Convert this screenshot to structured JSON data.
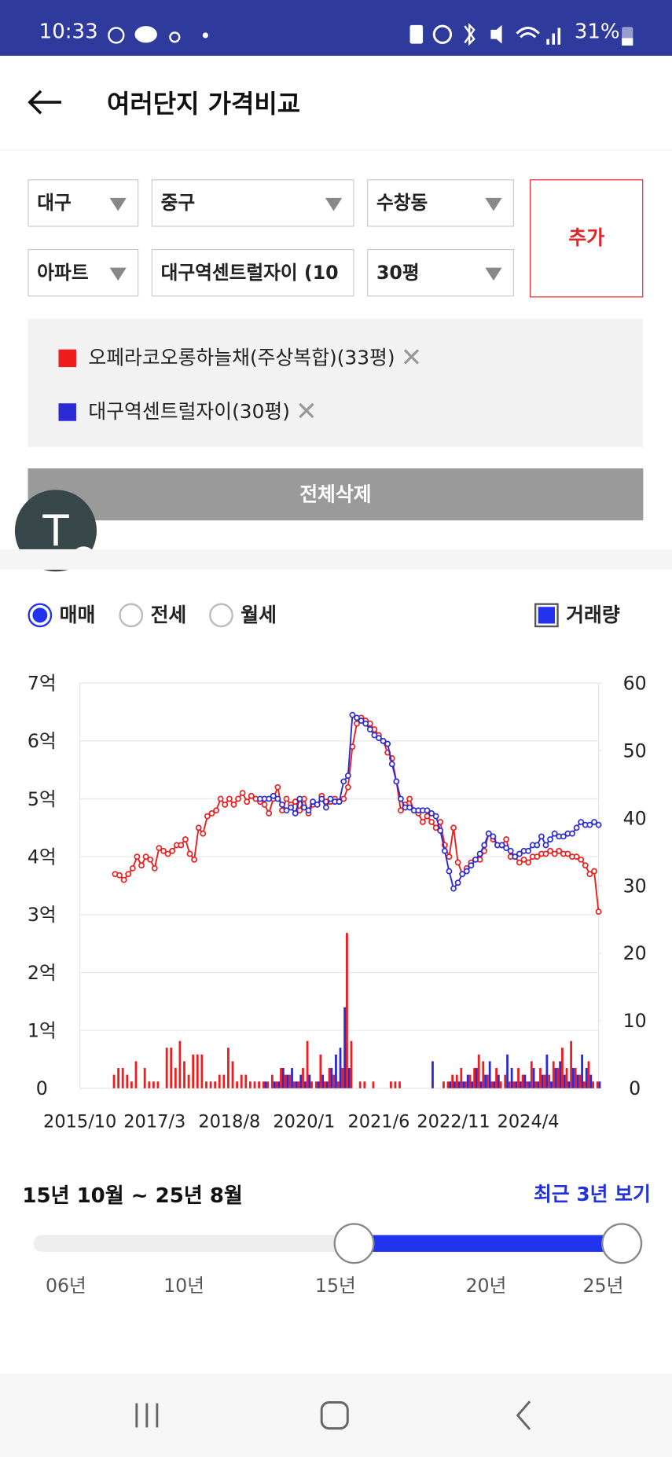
{
  "status_bar": {
    "time": "10:33",
    "battery": "31%"
  },
  "header": {
    "title": "여러단지 가격비교"
  },
  "filters": {
    "rows": [
      [
        "대구",
        "중구",
        "수창동"
      ],
      [
        "아파트",
        "대구역센트럴자이 (10",
        "30평"
      ]
    ],
    "add_button": "추가"
  },
  "delete_all_button": "전체삭제",
  "floating_button": "T",
  "tabs": {
    "options": [
      {
        "label": "매매",
        "selected": true
      },
      {
        "label": "전세",
        "selected": false
      },
      {
        "label": "월세",
        "selected": false
      }
    ],
    "volume_toggle": {
      "label": "거래량",
      "checked": true
    }
  },
  "chart_data": {
    "type": "line",
    "categories": [
      "2015/10",
      null,
      null,
      null,
      null,
      null,
      null,
      null,
      null,
      null,
      null,
      null,
      null,
      null,
      null,
      null,
      null,
      "2017/3",
      null,
      null,
      null,
      null,
      null,
      null,
      null,
      null,
      null,
      null,
      null,
      null,
      null,
      null,
      null,
      null,
      "2018/8",
      null,
      null,
      null,
      null,
      null,
      null,
      null,
      null,
      null,
      null,
      null,
      null,
      null,
      null,
      null,
      null,
      "2020/1",
      null,
      null,
      null,
      null,
      null,
      null,
      null,
      null,
      null,
      null,
      null,
      null,
      null,
      null,
      null,
      null,
      "2021/6",
      null,
      null,
      null,
      null,
      null,
      null,
      null,
      null,
      null,
      null,
      null,
      null,
      null,
      null,
      null,
      null,
      "2022/11",
      null,
      null,
      null,
      null,
      null,
      null,
      null,
      null,
      null,
      null,
      null,
      null,
      null,
      null,
      null,
      null,
      "2024/4",
      null,
      null,
      null,
      null,
      null,
      null,
      null,
      null,
      null,
      null,
      null,
      null,
      null,
      null,
      null,
      null
    ],
    "series": [
      {
        "name": "오페라코오롱하늘채(주상복합)(33평)",
        "color": "#ee1c1c",
        "values": [
          null,
          null,
          null,
          null,
          null,
          null,
          null,
          null,
          3.7,
          3.68,
          3.6,
          3.7,
          3.8,
          4.0,
          3.85,
          4.0,
          3.95,
          3.8,
          4.15,
          4.1,
          4.05,
          4.1,
          4.2,
          4.2,
          4.3,
          4.05,
          3.95,
          4.5,
          4.4,
          4.7,
          4.75,
          4.8,
          5.0,
          4.9,
          5.0,
          4.9,
          5.0,
          5.1,
          4.95,
          5.05,
          5.0,
          4.95,
          4.9,
          4.75,
          5.0,
          5.2,
          4.8,
          5.0,
          4.9,
          4.95,
          4.8,
          5.0,
          4.75,
          4.9,
          4.9,
          5.05,
          4.95,
          4.95,
          5.0,
          4.95,
          5.0,
          5.2,
          5.9,
          6.3,
          6.4,
          6.35,
          6.3,
          6.2,
          6.1,
          6.0,
          5.8,
          5.7,
          5.3,
          4.8,
          4.9,
          5.0,
          4.8,
          4.75,
          4.6,
          4.7,
          4.6,
          4.5,
          4.6,
          4.2,
          4.0,
          4.5,
          3.9,
          3.7,
          3.8,
          3.9,
          3.95,
          3.95,
          4.1,
          4.4,
          4.3,
          4.2,
          4.2,
          4.3,
          4.0,
          4.0,
          3.9,
          3.95,
          3.9,
          4.0,
          4.0,
          4.05,
          4.05,
          4.1,
          4.05,
          4.1,
          4.05,
          4.05,
          4.0,
          4.0,
          3.95,
          3.85,
          3.7,
          3.75,
          3.05
        ]
      },
      {
        "name": "대구역센트럴자이(30평)",
        "color": "#2b2bd6",
        "values": [
          null,
          null,
          null,
          null,
          null,
          null,
          null,
          null,
          null,
          null,
          null,
          null,
          null,
          null,
          null,
          null,
          null,
          null,
          null,
          null,
          null,
          null,
          null,
          null,
          null,
          null,
          null,
          null,
          null,
          null,
          null,
          null,
          null,
          null,
          null,
          null,
          null,
          null,
          null,
          null,
          null,
          5.0,
          5.0,
          5.0,
          5.05,
          5.0,
          4.9,
          4.8,
          4.85,
          4.75,
          5.0,
          4.85,
          4.8,
          4.95,
          4.9,
          5.0,
          4.85,
          5.0,
          4.95,
          4.95,
          5.3,
          5.4,
          6.45,
          6.4,
          6.35,
          6.3,
          6.2,
          6.1,
          6.05,
          6.0,
          5.95,
          5.6,
          5.3,
          5.0,
          4.85,
          4.85,
          4.8,
          4.8,
          4.8,
          4.8,
          4.75,
          4.7,
          4.45,
          4.1,
          3.75,
          3.45,
          3.55,
          3.7,
          3.75,
          3.85,
          3.95,
          4.05,
          4.2,
          4.4,
          4.35,
          4.2,
          4.2,
          4.15,
          4.1,
          4.0,
          4.05,
          4.1,
          4.1,
          4.2,
          4.2,
          4.35,
          4.2,
          4.3,
          4.4,
          4.35,
          4.35,
          4.4,
          4.4,
          4.5,
          4.6,
          4.55,
          4.55,
          4.6,
          4.55
        ]
      }
    ],
    "volume_series": [
      {
        "type": "bar",
        "axis": "y2",
        "color": "#ee1c1c",
        "values": [
          0,
          0,
          0,
          0,
          0,
          0,
          0,
          0,
          2,
          3,
          3,
          2,
          1,
          4,
          0,
          3,
          1,
          1,
          1,
          0,
          6,
          6,
          3,
          7,
          4,
          2,
          5,
          5,
          5,
          1,
          1,
          1,
          2,
          2,
          6,
          4,
          1,
          2,
          2,
          1,
          1,
          1,
          1,
          1,
          2,
          1,
          3,
          2,
          2,
          1,
          1,
          3,
          7,
          1,
          1,
          5,
          1,
          3,
          2,
          1,
          3,
          23,
          7,
          0,
          1,
          1,
          0,
          1,
          0,
          0,
          0,
          1,
          1,
          1,
          0,
          0,
          0,
          0,
          0,
          0,
          0,
          0,
          0,
          1,
          1,
          2,
          2,
          3,
          1,
          2,
          3,
          5,
          4,
          2,
          1,
          3,
          1,
          2,
          1,
          1,
          3,
          2,
          1,
          4,
          1,
          3,
          2,
          2,
          4,
          3,
          6,
          3,
          7,
          3,
          2,
          1,
          4,
          1,
          1
        ]
      },
      {
        "type": "bar",
        "axis": "y2",
        "color": "#2b2bd6",
        "values": [
          null,
          null,
          null,
          null,
          null,
          null,
          null,
          null,
          null,
          null,
          null,
          null,
          null,
          null,
          null,
          null,
          null,
          null,
          null,
          null,
          null,
          null,
          null,
          null,
          null,
          null,
          null,
          null,
          null,
          null,
          null,
          null,
          null,
          null,
          null,
          null,
          null,
          null,
          null,
          null,
          null,
          0,
          1,
          0,
          1,
          1,
          3,
          2,
          3,
          1,
          2,
          1,
          2,
          0,
          1,
          2,
          1,
          3,
          5,
          6,
          12,
          3,
          0,
          0,
          0,
          0,
          0,
          0,
          0,
          0,
          0,
          0,
          0,
          0,
          0,
          0,
          0,
          0,
          0,
          0,
          4,
          0,
          0,
          0,
          1,
          1,
          1,
          1,
          2,
          1,
          3,
          1,
          2,
          4,
          1,
          2,
          0,
          5,
          3,
          1,
          1,
          2,
          1,
          3,
          1,
          2,
          5,
          1,
          3,
          4,
          2,
          1,
          3,
          2,
          5,
          3,
          2,
          0,
          1
        ]
      }
    ],
    "ylim": [
      0,
      7
    ],
    "yticks": [
      0,
      {
        "value": 1,
        "label": "1억"
      },
      {
        "value": 2,
        "label": "2억"
      },
      {
        "value": 3,
        "label": "3억"
      },
      {
        "value": 4,
        "label": "4억"
      },
      {
        "value": 5,
        "label": "5억"
      },
      {
        "value": 6,
        "label": "6억"
      },
      {
        "value": 7,
        "label": "7억"
      }
    ],
    "y2lim": [
      0,
      60
    ],
    "y2ticks": [
      0,
      10,
      20,
      30,
      40,
      50,
      60
    ],
    "grid": true
  },
  "range": {
    "label": "15년 10월 ~ 25년 8월",
    "recent_button": "최근 3년 보기",
    "ticks": [
      "06년",
      "10년",
      "15년",
      "20년",
      "25년"
    ]
  }
}
